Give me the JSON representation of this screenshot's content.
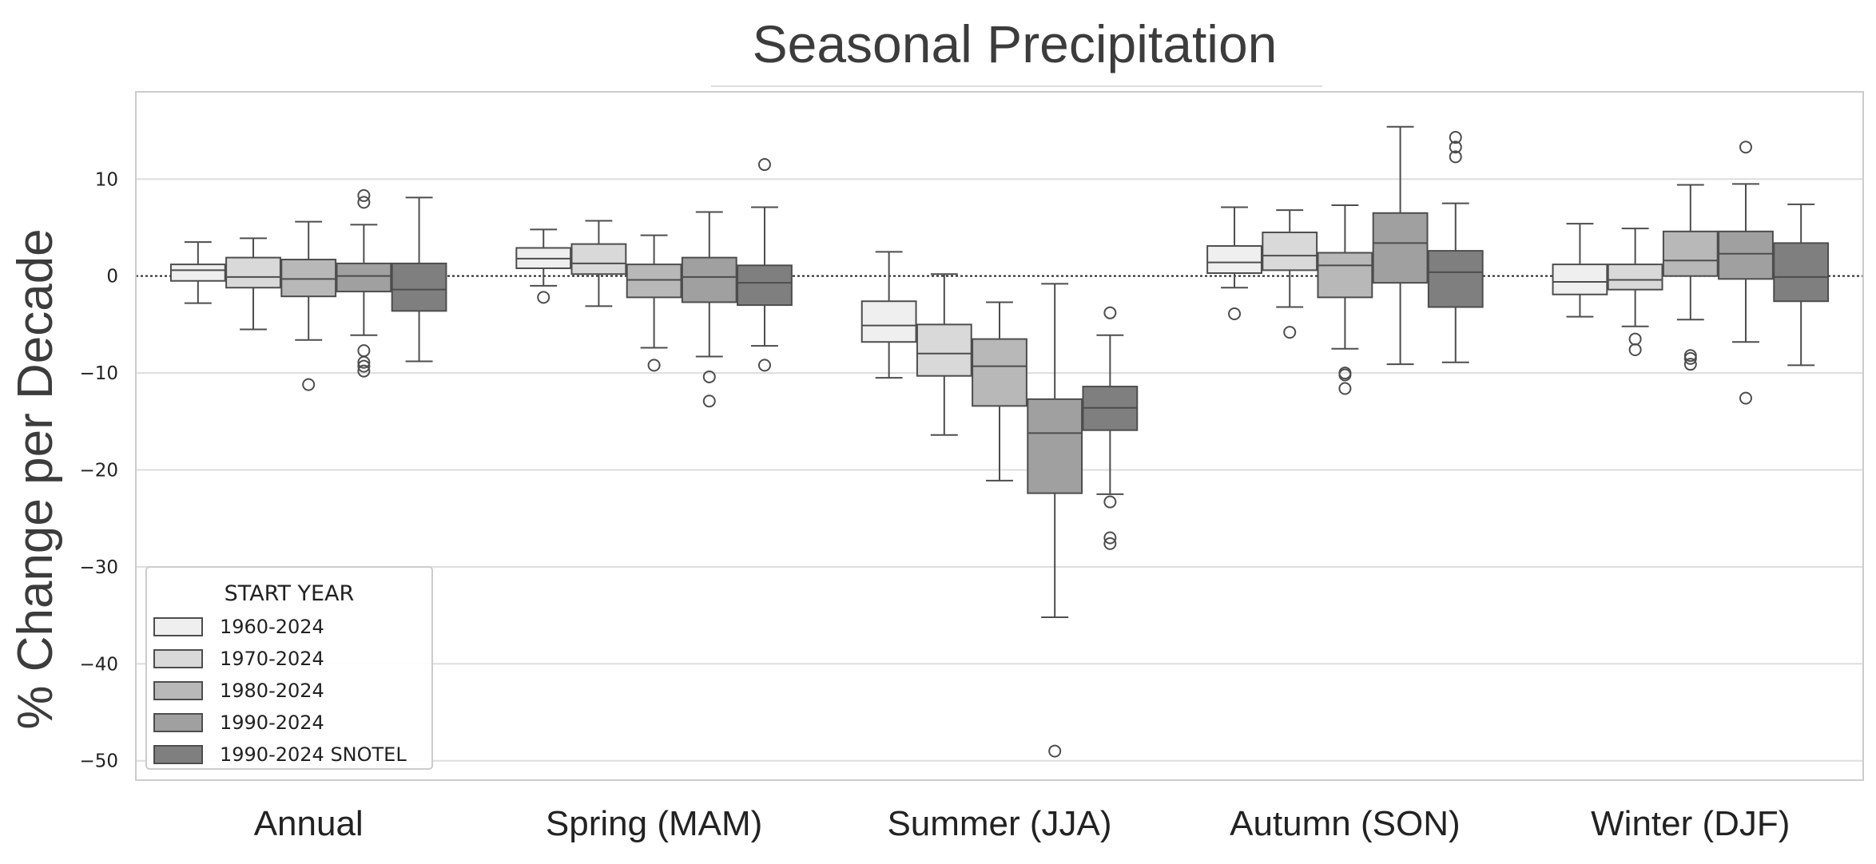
{
  "chart_data": {
    "type": "boxplot",
    "title": "Seasonal Precipitation",
    "xlabel": "",
    "ylabel": "% Change per Decade",
    "ylim": [
      -52,
      19
    ],
    "yticks": [
      10,
      0,
      -10,
      -20,
      -30,
      -40,
      -50
    ],
    "ytick_labels": [
      "10",
      "0",
      "−10",
      "−20",
      "−30",
      "−40",
      "−50"
    ],
    "grid": "horizontal",
    "zero_line": "dotted",
    "legend": {
      "title": "START YEAR",
      "placement": "bottom-left",
      "entries": [
        "1960-2024",
        "1970-2024",
        "1980-2024",
        "1990-2024",
        "1990-2024 SNOTEL"
      ]
    },
    "categories": [
      "Annual",
      "Spring (MAM)",
      "Summer (JJA)",
      "Autumn (SON)",
      "Winter (DJF)"
    ],
    "series": [
      {
        "name": "1960-2024",
        "color": "#efefef",
        "boxes": [
          {
            "whislo": -2.8,
            "q1": -0.5,
            "med": 0.6,
            "q3": 1.2,
            "whishi": 3.5,
            "fliers": []
          },
          {
            "whislo": -1.0,
            "q1": 0.8,
            "med": 1.8,
            "q3": 2.9,
            "whishi": 4.8,
            "fliers": [
              -2.2
            ]
          },
          {
            "whislo": -10.5,
            "q1": -6.8,
            "med": -5.1,
            "q3": -2.6,
            "whishi": 2.5,
            "fliers": []
          },
          {
            "whislo": -1.2,
            "q1": 0.3,
            "med": 1.4,
            "q3": 3.1,
            "whishi": 7.1,
            "fliers": [
              -3.9
            ]
          },
          {
            "whislo": -4.2,
            "q1": -1.9,
            "med": -0.6,
            "q3": 1.2,
            "whishi": 5.4,
            "fliers": []
          }
        ]
      },
      {
        "name": "1970-2024",
        "color": "#d9d9d9",
        "boxes": [
          {
            "whislo": -5.5,
            "q1": -1.2,
            "med": -0.1,
            "q3": 1.9,
            "whishi": 3.9,
            "fliers": []
          },
          {
            "whislo": -3.1,
            "q1": 0.2,
            "med": 1.3,
            "q3": 3.3,
            "whishi": 5.7,
            "fliers": []
          },
          {
            "whislo": -16.4,
            "q1": -10.3,
            "med": -8.0,
            "q3": -5.0,
            "whishi": 0.2,
            "fliers": []
          },
          {
            "whislo": -3.2,
            "q1": 0.6,
            "med": 2.1,
            "q3": 4.5,
            "whishi": 6.8,
            "fliers": [
              -5.8
            ]
          },
          {
            "whislo": -5.2,
            "q1": -1.4,
            "med": -0.4,
            "q3": 1.2,
            "whishi": 4.9,
            "fliers": [
              -6.5,
              -7.6
            ]
          }
        ]
      },
      {
        "name": "1980-2024",
        "color": "#b8b8b8",
        "boxes": [
          {
            "whislo": -6.6,
            "q1": -2.1,
            "med": -0.3,
            "q3": 1.7,
            "whishi": 5.6,
            "fliers": [
              -11.2
            ]
          },
          {
            "whislo": -7.4,
            "q1": -2.2,
            "med": -0.4,
            "q3": 1.2,
            "whishi": 4.2,
            "fliers": [
              -9.2
            ]
          },
          {
            "whislo": -21.1,
            "q1": -13.4,
            "med": -9.3,
            "q3": -6.5,
            "whishi": -2.7,
            "fliers": []
          },
          {
            "whislo": -7.5,
            "q1": -2.2,
            "med": 1.1,
            "q3": 2.4,
            "whishi": 7.3,
            "fliers": [
              -10.0,
              -10.2,
              -11.6
            ]
          },
          {
            "whislo": -4.5,
            "q1": 0.0,
            "med": 1.6,
            "q3": 4.6,
            "whishi": 9.4,
            "fliers": [
              -8.2,
              -8.5,
              -9.1
            ]
          }
        ]
      },
      {
        "name": "1990-2024",
        "color": "#a0a0a0",
        "boxes": [
          {
            "whislo": -6.1,
            "q1": -1.6,
            "med": 0.0,
            "q3": 1.3,
            "whishi": 5.3,
            "fliers": [
              8.3,
              7.6,
              -7.7,
              -8.9,
              -9.3,
              -9.8
            ]
          },
          {
            "whislo": -8.3,
            "q1": -2.7,
            "med": -0.1,
            "q3": 1.9,
            "whishi": 6.6,
            "fliers": [
              -10.4,
              -12.9
            ]
          },
          {
            "whislo": -35.2,
            "q1": -22.4,
            "med": -16.2,
            "q3": -12.7,
            "whishi": -0.8,
            "fliers": [
              -49.0
            ]
          },
          {
            "whislo": -9.1,
            "q1": -0.7,
            "med": 3.4,
            "q3": 6.5,
            "whishi": 15.4,
            "fliers": []
          },
          {
            "whislo": -6.8,
            "q1": -0.3,
            "med": 2.3,
            "q3": 4.6,
            "whishi": 9.5,
            "fliers": [
              13.3,
              -12.6
            ]
          }
        ]
      },
      {
        "name": "1990-2024 SNOTEL",
        "color": "#7f7f7f",
        "boxes": [
          {
            "whislo": -8.8,
            "q1": -3.6,
            "med": -1.4,
            "q3": 1.3,
            "whishi": 8.1,
            "fliers": []
          },
          {
            "whislo": -7.2,
            "q1": -3.0,
            "med": -0.7,
            "q3": 1.1,
            "whishi": 7.1,
            "fliers": [
              11.5,
              -9.2
            ]
          },
          {
            "whislo": -22.5,
            "q1": -15.9,
            "med": -13.6,
            "q3": -11.4,
            "whishi": -6.1,
            "fliers": [
              -3.8,
              -23.3,
              -27.0,
              -27.6
            ]
          },
          {
            "whislo": -8.9,
            "q1": -3.2,
            "med": 0.4,
            "q3": 2.6,
            "whishi": 7.5,
            "fliers": [
              14.3,
              13.3,
              12.3
            ]
          },
          {
            "whislo": -9.2,
            "q1": -2.6,
            "med": -0.1,
            "q3": 3.4,
            "whishi": 7.4,
            "fliers": []
          }
        ]
      }
    ]
  }
}
